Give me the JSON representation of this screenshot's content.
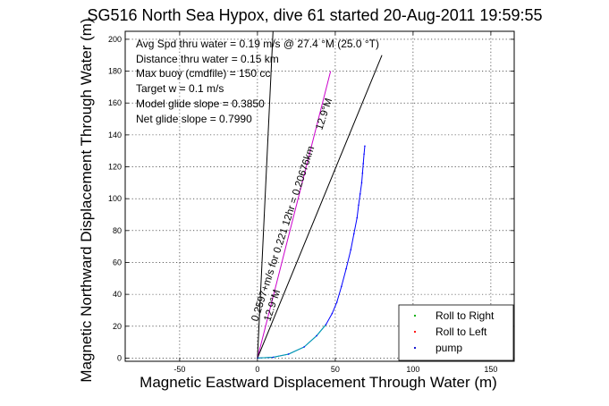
{
  "chart_data": {
    "type": "line",
    "title": "SG516 North Sea Hypox, dive 61 started 20-Aug-2011 19:59:55",
    "xlabel": "Magnetic Eastward Displacement Through Water (m)",
    "ylabel": "Magnetic Northward Displacement Through Water (m)",
    "xlim": [
      -85,
      165
    ],
    "ylim": [
      -2,
      205
    ],
    "x_ticks": [
      -50,
      0,
      50,
      100,
      150
    ],
    "y_ticks": [
      0,
      20,
      40,
      60,
      80,
      100,
      120,
      140,
      160,
      180,
      200
    ],
    "grid": true,
    "annotations": [
      "Avg Spd thru water = 0.19 m/s @  27.4    °M (25.0 °T)",
      "Distance thru water = 0.15 km",
      "Max buoy (cmdfile) = 150 cc",
      "Target w = 0.1 m/s",
      "Model glide slope = 0.3850",
      "Net glide slope = 0.7990"
    ],
    "rotated_labels": [
      {
        "text": "0.2597+m/s for 0.221 12hr = 0.20676km",
        "angle": -72
      },
      {
        "text": "12.9°M",
        "angle": -72
      },
      {
        "text": "12.9°M",
        "angle": -72
      }
    ],
    "reference_lines": [
      {
        "name": "heading line steep",
        "x": [
          0,
          10
        ],
        "y": [
          0,
          205
        ],
        "color": "#000000"
      },
      {
        "name": "heading line magenta",
        "x": [
          0,
          47
        ],
        "y": [
          0,
          180
        ],
        "color": "#cc00cc"
      },
      {
        "name": "heading line shallow",
        "x": [
          0,
          80
        ],
        "y": [
          0,
          190
        ],
        "color": "#000000"
      }
    ],
    "legend_position": "bottom-right",
    "series": [
      {
        "name": "Roll to Right",
        "color": "#00aa00",
        "marker": "point",
        "x": [],
        "y": []
      },
      {
        "name": "Roll to Left",
        "color": "#ff0000",
        "marker": "point",
        "x": [],
        "y": []
      },
      {
        "name": "pump",
        "color": "#0000cc",
        "marker": "point",
        "x": [],
        "y": []
      }
    ],
    "track": {
      "color": "#0000ff",
      "x": [
        0,
        10,
        20,
        30,
        38,
        44,
        48,
        51,
        54,
        57,
        60,
        62,
        64,
        65,
        66,
        67,
        67.5,
        68,
        68.5,
        69
      ],
      "y": [
        0,
        0.5,
        2.5,
        7,
        14,
        21,
        28,
        35,
        45,
        56,
        68,
        78,
        88,
        96,
        103,
        110,
        116,
        122,
        128,
        133
      ]
    },
    "track_near_start": {
      "color": "#00aaaa",
      "x": [
        0,
        10,
        20,
        30,
        38,
        44
      ],
      "y": [
        0,
        0.5,
        2.5,
        7,
        14,
        21
      ]
    }
  }
}
